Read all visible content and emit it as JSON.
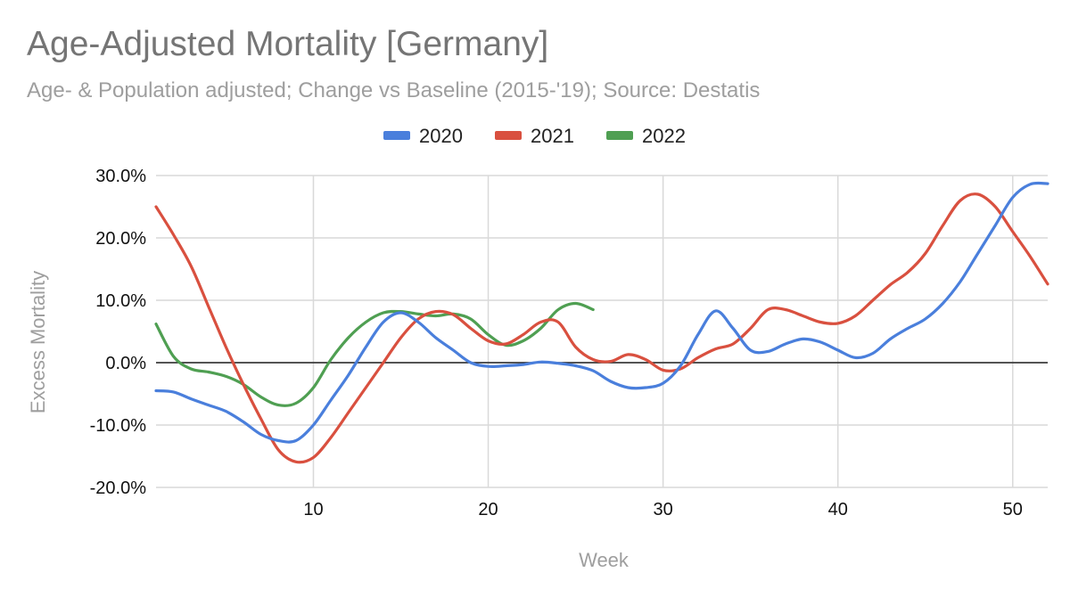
{
  "title": "Age-Adjusted Mortality [Germany]",
  "subtitle": "Age- & Population adjusted; Change vs Baseline (2015-'19); Source: Destatis",
  "chart_data": {
    "type": "line",
    "title": "Age-Adjusted Mortality [Germany]",
    "subtitle": "Age- & Population adjusted; Change vs Baseline (2015-'19); Source: Destatis",
    "xlabel": "Week",
    "ylabel": "Excess Mortality",
    "xlim": [
      1,
      52
    ],
    "ylim": [
      -20,
      30
    ],
    "xticks": [
      10,
      20,
      30,
      40,
      50
    ],
    "yticks": [
      {
        "value": 30,
        "label": "30.0%"
      },
      {
        "value": 20,
        "label": "20.0%"
      },
      {
        "value": 10,
        "label": "10.0%"
      },
      {
        "value": 0,
        "label": "0.0%"
      },
      {
        "value": -10,
        "label": "-10.0%"
      },
      {
        "value": -20,
        "label": "-20.0%"
      }
    ],
    "grid": true,
    "legend_position": "top",
    "series": [
      {
        "name": "2020",
        "color": "#4a7fdc",
        "x": [
          1,
          2,
          3,
          4,
          5,
          6,
          7,
          8,
          9,
          10,
          11,
          12,
          13,
          14,
          15,
          16,
          17,
          18,
          19,
          20,
          21,
          22,
          23,
          24,
          25,
          26,
          27,
          28,
          29,
          30,
          31,
          32,
          33,
          34,
          35,
          36,
          37,
          38,
          39,
          40,
          41,
          42,
          43,
          44,
          45,
          46,
          47,
          48,
          49,
          50,
          51,
          52
        ],
        "values": [
          -4.5,
          -4.7,
          -5.8,
          -6.8,
          -7.8,
          -9.5,
          -11.5,
          -12.5,
          -12.5,
          -10.0,
          -6.0,
          -2.0,
          2.5,
          6.5,
          8.0,
          6.5,
          4.0,
          2.0,
          0.0,
          -0.6,
          -0.5,
          -0.3,
          0.1,
          -0.1,
          -0.5,
          -1.3,
          -3.0,
          -4.0,
          -4.0,
          -3.3,
          -0.5,
          4.5,
          8.3,
          5.5,
          2.0,
          1.8,
          3.0,
          3.8,
          3.3,
          2.0,
          0.8,
          1.5,
          3.8,
          5.5,
          7.0,
          9.5,
          13.0,
          17.5,
          22.0,
          26.5,
          28.6,
          28.7
        ]
      },
      {
        "name": "2021",
        "color": "#d9503f",
        "x": [
          1,
          2,
          3,
          4,
          5,
          6,
          7,
          8,
          9,
          10,
          11,
          12,
          13,
          14,
          15,
          16,
          17,
          18,
          19,
          20,
          21,
          22,
          23,
          24,
          25,
          26,
          27,
          28,
          29,
          30,
          31,
          32,
          33,
          34,
          35,
          36,
          37,
          38,
          39,
          40,
          41,
          42,
          43,
          44,
          45,
          46,
          47,
          48,
          49,
          50,
          51,
          52
        ],
        "values": [
          25.0,
          20.5,
          15.5,
          9.0,
          2.5,
          -3.5,
          -9.0,
          -14.0,
          -15.9,
          -15.2,
          -12.0,
          -8.0,
          -4.0,
          0.0,
          4.0,
          7.0,
          8.2,
          7.7,
          5.5,
          3.5,
          3.0,
          4.5,
          6.5,
          6.5,
          2.5,
          0.5,
          0.2,
          1.3,
          0.5,
          -1.2,
          -1.0,
          0.8,
          2.2,
          3.0,
          5.5,
          8.5,
          8.5,
          7.5,
          6.5,
          6.3,
          7.5,
          10.0,
          12.5,
          14.5,
          17.5,
          22.0,
          26.0,
          27.0,
          25.0,
          21.0,
          17.0,
          12.6
        ]
      },
      {
        "name": "2022",
        "color": "#4f9f52",
        "x": [
          1,
          2,
          3,
          4,
          5,
          6,
          7,
          8,
          9,
          10,
          11,
          12,
          13,
          14,
          15,
          16,
          17,
          18,
          19,
          20,
          21,
          22,
          23,
          24,
          25,
          26
        ],
        "values": [
          6.2,
          1.0,
          -1.0,
          -1.5,
          -2.2,
          -3.5,
          -5.5,
          -6.8,
          -6.5,
          -4.0,
          0.5,
          4.0,
          6.5,
          8.0,
          8.2,
          7.8,
          7.5,
          7.8,
          7.0,
          4.5,
          2.8,
          3.5,
          5.5,
          8.5,
          9.5,
          8.5
        ]
      }
    ]
  }
}
